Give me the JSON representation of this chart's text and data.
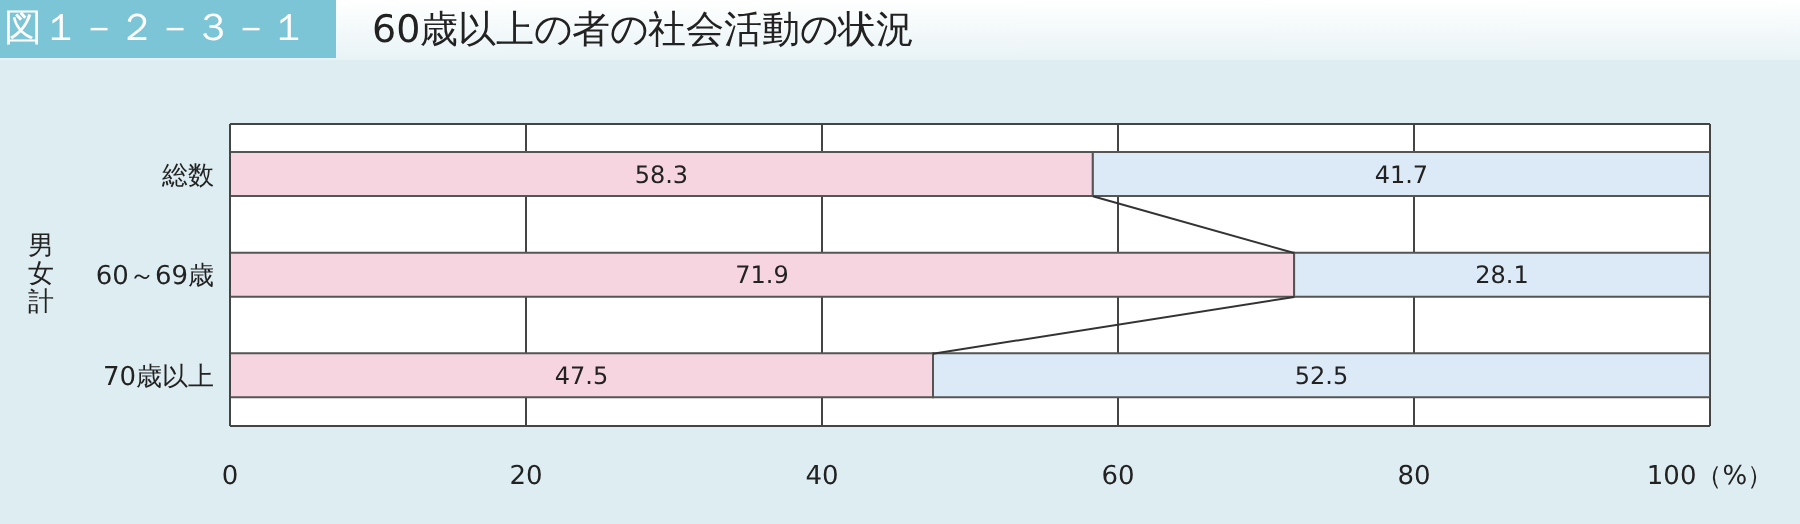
{
  "chart_data": {
    "type": "bar",
    "orientation": "horizontal",
    "stacked": true,
    "title": "60歳以上の者の社会活動の状況",
    "annotations": [
      "図１－２－３－１"
    ],
    "ylabel": "男女計",
    "categories": [
      "総数",
      "60～69歳",
      "70歳以上"
    ],
    "series": [
      {
        "color": "#f6d5e1",
        "values": [
          58.3,
          71.9,
          47.5
        ]
      },
      {
        "color": "#dce9f6",
        "values": [
          41.7,
          28.1,
          52.5
        ]
      }
    ],
    "xlim": [
      0,
      100
    ],
    "xticks": [
      0,
      20,
      40,
      60,
      80,
      {
        "value": 100,
        "label": "100（%）"
      }
    ],
    "grid": "x",
    "data_labels": true
  }
}
